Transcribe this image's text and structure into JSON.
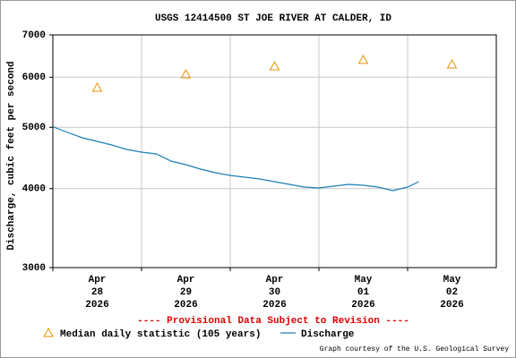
{
  "chart_data": {
    "type": "line",
    "title": "USGS 12414500 ST JOE RIVER AT CALDER, ID",
    "y_label": "Discharge, cubic feet per second",
    "log_scale": true,
    "grid": true,
    "ylim": [
      3000,
      7000
    ],
    "yticks": [
      3000,
      4000,
      5000,
      6000,
      7000
    ],
    "xlim": [
      "2026-04-28T00:00",
      "2026-05-03T00:00"
    ],
    "xticks": [
      {
        "value": "2026-04-28T00:00",
        "label": "Apr\n28\n2026"
      },
      {
        "value": "2026-04-29T00:00",
        "label": "Apr\n29\n2026"
      },
      {
        "value": "2026-04-30T00:00",
        "label": "Apr\n30\n2026"
      },
      {
        "value": "2026-05-01T00:00",
        "label": "May\n01\n2026"
      },
      {
        "value": "2026-05-02T00:00",
        "label": "May\n02\n2026"
      }
    ],
    "annotation": "---- Provisional Data Subject to Revision ----",
    "credit": "Graph courtesy of the U.S. Geological Survey",
    "series": [
      {
        "name": "Median daily statistic (105 years)",
        "color": "#e69500",
        "marker": "triangle",
        "x": [
          "2026-04-28T12:00",
          "2026-04-29T12:00",
          "2026-04-30T12:00",
          "2026-05-01T12:00",
          "2026-05-02T12:00"
        ],
        "values": [
          5776,
          6065,
          6246,
          6391,
          6287
        ]
      },
      {
        "name": "Discharge",
        "color": "#1a7fb5",
        "marker": "line",
        "x": [
          "2026-04-28T00:00",
          "2026-04-28T04:00",
          "2026-04-28T08:00",
          "2026-04-28T12:00",
          "2026-04-28T16:00",
          "2026-04-28T20:00",
          "2026-04-29T00:00",
          "2026-04-29T04:00",
          "2026-04-29T08:00",
          "2026-04-29T12:00",
          "2026-04-29T16:00",
          "2026-04-29T20:00",
          "2026-04-30T00:00",
          "2026-04-30T04:00",
          "2026-04-30T08:00",
          "2026-04-30T12:00",
          "2026-04-30T16:00",
          "2026-04-30T20:00",
          "2026-05-01T00:00",
          "2026-05-01T04:00",
          "2026-05-01T08:00",
          "2026-05-01T12:00",
          "2026-05-01T16:00",
          "2026-05-01T20:00",
          "2026-05-02T00:00",
          "2026-05-02T03:00"
        ],
        "values": [
          5010,
          4907,
          4812,
          4750,
          4688,
          4612,
          4568,
          4538,
          4421,
          4364,
          4294,
          4238,
          4197,
          4170,
          4142,
          4102,
          4062,
          4023,
          4010,
          4036,
          4062,
          4049,
          4023,
          3971,
          4023,
          4102
        ]
      }
    ]
  }
}
